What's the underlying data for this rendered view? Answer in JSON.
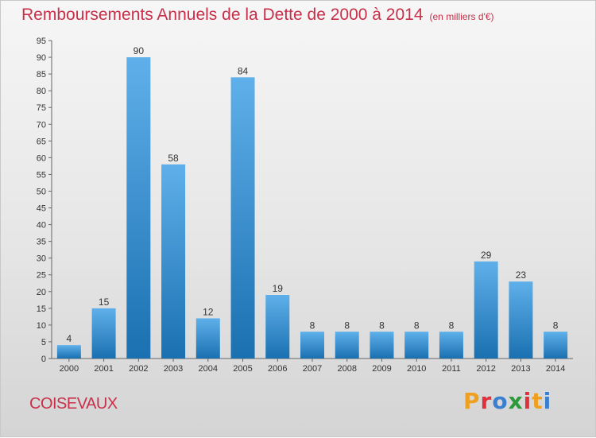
{
  "header": {
    "title": "Remboursements Annuels de la Dette de 2000 à 2014",
    "unit_note": "(en milliers d'€)"
  },
  "footer": {
    "commune": "COISEVAUX",
    "logo_text": "Proxiti",
    "logo_colors": [
      "#f0a020",
      "#e0303a",
      "#3a7fd0",
      "#2a9a3a",
      "#e0303a",
      "#f0a020",
      "#3a7fd0"
    ]
  },
  "colors": {
    "bar_top": "#5fb0ea",
    "bar_bottom": "#1a70b0",
    "accent": "#c8304a"
  },
  "chart_data": {
    "type": "bar",
    "title": "Remboursements Annuels de la Dette de 2000 à 2014",
    "categories": [
      "2000",
      "2001",
      "2002",
      "2003",
      "2004",
      "2005",
      "2006",
      "2007",
      "2008",
      "2009",
      "2010",
      "2011",
      "2012",
      "2013",
      "2014"
    ],
    "values": [
      4,
      15,
      90,
      58,
      12,
      84,
      19,
      8,
      8,
      8,
      8,
      8,
      29,
      23,
      8
    ],
    "ylim": [
      0,
      95
    ],
    "yticks": [
      0,
      5,
      10,
      15,
      20,
      25,
      30,
      35,
      40,
      45,
      50,
      55,
      60,
      65,
      70,
      75,
      80,
      85,
      90,
      95
    ],
    "grid": false,
    "xlabel": "",
    "ylabel": ""
  }
}
